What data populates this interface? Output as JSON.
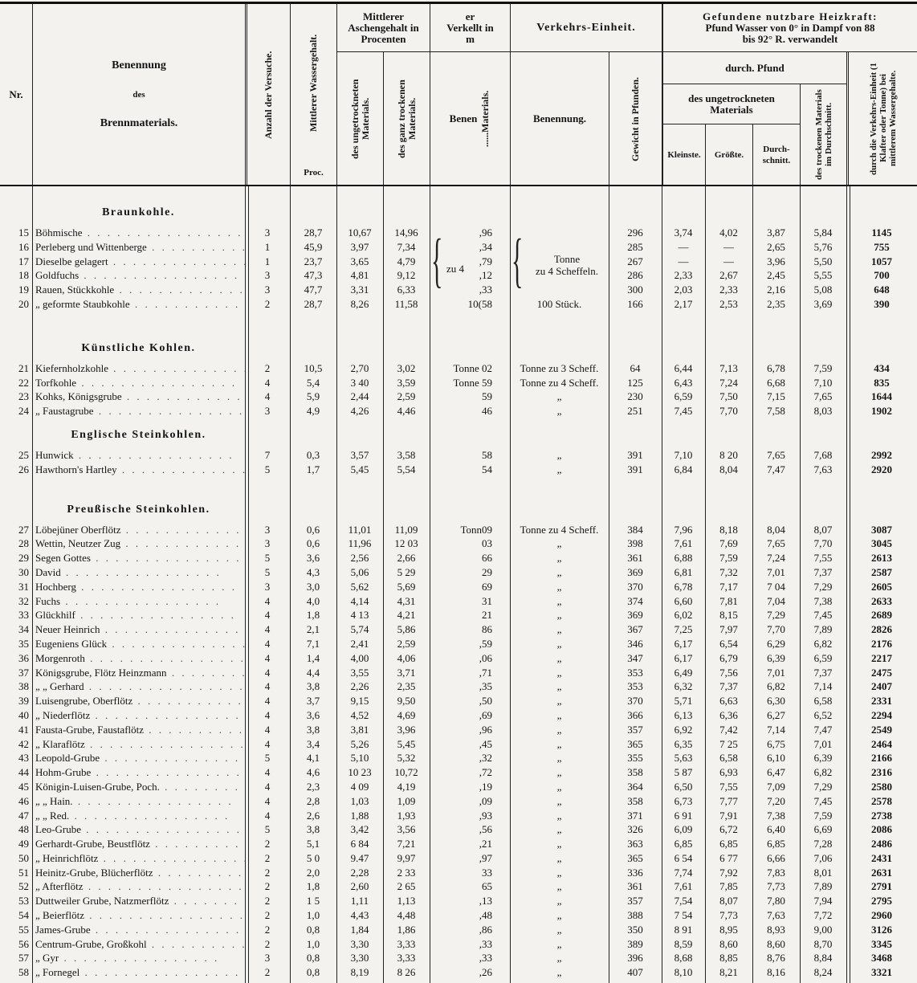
{
  "header": {
    "nr": "Nr.",
    "name": [
      "Benennung",
      "des",
      "Brennmaterials."
    ],
    "anzahl": "Anzahl der Versuche.",
    "wasser": "Mittlerer Wassergehalt.",
    "wasser_unit": "Proc.",
    "asche_group": [
      "Mittlerer",
      "Aschengehalt in",
      "Procenten"
    ],
    "asche_u": "des ungetrockneten Materials.",
    "asche_t": "des ganz trockenen Materials.",
    "verk_group": [
      "er",
      "Verkellt in",
      "m"
    ],
    "verk_benen": "Benen",
    "verk_mat": "......Materials.",
    "einheit_group": "Verkehrs-Einheit.",
    "einheit_benennung": "Benennung.",
    "gewicht": "Gewicht in Pfunden.",
    "heiz_group": [
      "Gefundene nutzbare Heizkraft:",
      "Pfund Wasser von 0° in Dampf von 88",
      "bis 92° R. verwandelt"
    ],
    "durch_pfund": "durch. Pfund",
    "ungetr": [
      "des ungetrockneten",
      "Materials"
    ],
    "kleinste": "Kleinste.",
    "groesste": "Größte.",
    "durchschnitt": [
      "Durch-",
      "schnitt."
    ],
    "trocken": "des trockenen Materials im Durchschnitt.",
    "total": "durch die Verkehrs-Einheit (1 Klafter oder Tonne) bei mittlerem Wassergehalte."
  },
  "sections": [
    {
      "title": "Braunkohle.",
      "group_verk": "zu 4",
      "group_unit": [
        "Tonne",
        "zu 4 Scheffeln."
      ],
      "rows": [
        [
          "15",
          "Böhmische",
          "3",
          "28,7",
          "10,67",
          "14,96",
          ",96",
          "",
          "296",
          "3,74",
          "4,02",
          "3,87",
          "5,84",
          "1145"
        ],
        [
          "16",
          "Perleberg und Wittenberge",
          "1",
          "45,9",
          "3,97",
          "7,34",
          ",34",
          "",
          "285",
          "—",
          "—",
          "2,65",
          "5,76",
          "755"
        ],
        [
          "17",
          "Dieselbe gelagert",
          "1",
          "23,7",
          "3,65",
          "4,79",
          ",79",
          "",
          "267",
          "—",
          "—",
          "3,96",
          "5,50",
          "1057"
        ],
        [
          "18",
          "Goldfuchs",
          "3",
          "47,3",
          "4,81",
          "9,12",
          ",12",
          "",
          "286",
          "2,33",
          "2,67",
          "2,45",
          "5,55",
          "700"
        ],
        [
          "19",
          "Rauen, Stückkohle",
          "3",
          "47,7",
          "3,31",
          "6,33",
          ",33",
          "",
          "300",
          "2,03",
          "2,33",
          "2,16",
          "5,08",
          "648"
        ],
        [
          "20",
          "„ geformte Staubkohle",
          "2",
          "28,7",
          "8,26",
          "11,58",
          "10(58",
          "100 Stück.",
          "166",
          "2,17",
          "2,53",
          "2,35",
          "3,69",
          "390"
        ]
      ]
    },
    {
      "title": "Künstliche Kohlen.",
      "rows": [
        [
          "21",
          "Kiefernholzkohle",
          "2",
          "10,5",
          "2,70",
          "3,02",
          "Tonne 02",
          "Tonne zu 3 Scheff.",
          "64",
          "6,44",
          "7,13",
          "6,78",
          "7,59",
          "434"
        ],
        [
          "22",
          "Torfkohle",
          "4",
          "5,4",
          "3 40",
          "3,59",
          "Tonne 59",
          "Tonne zu 4 Scheff.",
          "125",
          "6,43",
          "7,24",
          "6,68",
          "7,10",
          "835"
        ],
        [
          "23",
          "Kohks, Königsgrube",
          "4",
          "5,9",
          "2,44",
          "2,59",
          "59",
          "„",
          "230",
          "6,59",
          "7,50",
          "7,15",
          "7,65",
          "1644"
        ],
        [
          "24",
          "„ Faustagrube",
          "3",
          "4,9",
          "4,26",
          "4,46",
          "46",
          "„",
          "251",
          "7,45",
          "7,70",
          "7,58",
          "8,03",
          "1902"
        ]
      ]
    },
    {
      "title": "Englische Steinkohlen.",
      "rows": [
        [
          "25",
          "Hunwick",
          "7",
          "0,3",
          "3,57",
          "3,58",
          "58",
          "„",
          "391",
          "7,10",
          "8 20",
          "7,65",
          "7,68",
          "2992"
        ],
        [
          "26",
          "Hawthorn's Hartley",
          "5",
          "1,7",
          "5,45",
          "5,54",
          "54",
          "„",
          "391",
          "6,84",
          "8,04",
          "7,47",
          "7,63",
          "2920"
        ]
      ]
    },
    {
      "title": "Preußische Steinkohlen.",
      "rows": [
        [
          "27",
          "Löbejüner Oberflötz",
          "3",
          "0,6",
          "11,01",
          "11,09",
          "Tonn09",
          "Tonne zu 4 Scheff.",
          "384",
          "7,96",
          "8,18",
          "8,04",
          "8,07",
          "3087"
        ],
        [
          "28",
          "Wettin, Neutzer Zug",
          "3",
          "0,6",
          "11,96",
          "12 03",
          "03",
          "„",
          "398",
          "7,61",
          "7,69",
          "7,65",
          "7,70",
          "3045"
        ],
        [
          "29",
          "Segen Gottes",
          "5",
          "3,6",
          "2,56",
          "2,66",
          "66",
          "„",
          "361",
          "6,88",
          "7,59",
          "7,24",
          "7,55",
          "2613"
        ],
        [
          "30",
          "David",
          "5",
          "4,3",
          "5,06",
          "5 29",
          "29",
          "„",
          "369",
          "6,81",
          "7,32",
          "7,01",
          "7,37",
          "2587"
        ],
        [
          "31",
          "Hochberg",
          "3",
          "3,0",
          "5,62",
          "5,69",
          "69",
          "„",
          "370",
          "6,78",
          "7,17",
          "7 04",
          "7,29",
          "2605"
        ],
        [
          "32",
          "Fuchs",
          "4",
          "4,0",
          "4,14",
          "4,31",
          "31",
          "„",
          "374",
          "6,60",
          "7,81",
          "7,04",
          "7,38",
          "2633"
        ],
        [
          "33",
          "Glückhilf",
          "4",
          "1,8",
          "4 13",
          "4,21",
          "21",
          "„",
          "369",
          "6,02",
          "8,15",
          "7,29",
          "7,45",
          "2689"
        ],
        [
          "34",
          "Neuer Heinrich",
          "4",
          "2,1",
          "5,74",
          "5,86",
          "86",
          "„",
          "367",
          "7,25",
          "7,97",
          "7,70",
          "7,89",
          "2826"
        ],
        [
          "35",
          "Eugeniens Glück",
          "4",
          "7,1",
          "2,41",
          "2,59",
          ",59",
          "„",
          "346",
          "6,17",
          "6,54",
          "6,29",
          "6,82",
          "2176"
        ],
        [
          "36",
          "Morgenroth",
          "4",
          "1,4",
          "4,00",
          "4,06",
          ",06",
          "„",
          "347",
          "6,17",
          "6,79",
          "6,39",
          "6,59",
          "2217"
        ],
        [
          "37",
          "Königsgrube, Flötz Heinzmann",
          "4",
          "4,4",
          "3,55",
          "3,71",
          ",71",
          "„",
          "353",
          "6,49",
          "7,56",
          "7,01",
          "7,37",
          "2475"
        ],
        [
          "38",
          "„ „ Gerhard",
          "4",
          "3,8",
          "2,26",
          "2,35",
          ",35",
          "„",
          "353",
          "6,32",
          "7,37",
          "6,82",
          "7,14",
          "2407"
        ],
        [
          "39",
          "Luisengrube, Oberflötz",
          "4",
          "3,7",
          "9,15",
          "9,50",
          ",50",
          "„",
          "370",
          "5,71",
          "6,63",
          "6,30",
          "6,58",
          "2331"
        ],
        [
          "40",
          "„ Niederflötz",
          "4",
          "3,6",
          "4,52",
          "4,69",
          ",69",
          "„",
          "366",
          "6,13",
          "6,36",
          "6,27",
          "6,52",
          "2294"
        ],
        [
          "41",
          "Fausta-Grube, Faustaflötz",
          "4",
          "3,8",
          "3,81",
          "3,96",
          ",96",
          "„",
          "357",
          "6,92",
          "7,42",
          "7,14",
          "7,47",
          "2549"
        ],
        [
          "42",
          "„ Klaraflötz",
          "4",
          "3,4",
          "5,26",
          "5,45",
          ",45",
          "„",
          "365",
          "6,35",
          "7 25",
          "6,75",
          "7,01",
          "2464"
        ],
        [
          "43",
          "Leopold-Grube",
          "5",
          "4,1",
          "5,10",
          "5,32",
          ",32",
          "„",
          "355",
          "5,63",
          "6,58",
          "6,10",
          "6,39",
          "2166"
        ],
        [
          "44",
          "Hohm-Grube",
          "4",
          "4,6",
          "10 23",
          "10,72",
          ",72",
          "„",
          "358",
          "5 87",
          "6,93",
          "6,47",
          "6,82",
          "2316"
        ],
        [
          "45",
          "Königin-Luisen-Grube, Poch.",
          "4",
          "2,3",
          "4 09",
          "4,19",
          ",19",
          "„",
          "364",
          "6,50",
          "7,55",
          "7,09",
          "7,29",
          "2580"
        ],
        [
          "46",
          "„ „ Hain.",
          "4",
          "2,8",
          "1,03",
          "1,09",
          ",09",
          "„",
          "358",
          "6,73",
          "7,77",
          "7,20",
          "7,45",
          "2578"
        ],
        [
          "47",
          "„ „ Red.",
          "4",
          "2,6",
          "1,88",
          "1,93",
          ",93",
          "„",
          "371",
          "6 91",
          "7,91",
          "7,38",
          "7,59",
          "2738"
        ],
        [
          "48",
          "Leo-Grube",
          "5",
          "3,8",
          "3,42",
          "3,56",
          ",56",
          "„",
          "326",
          "6,09",
          "6,72",
          "6,40",
          "6,69",
          "2086"
        ],
        [
          "49",
          "Gerhardt-Grube, Beustflötz",
          "2",
          "5,1",
          "6 84",
          "7,21",
          ",21",
          "„",
          "363",
          "6,85",
          "6,85",
          "6,85",
          "7,28",
          "2486"
        ],
        [
          "50",
          "„ Heinrichflötz",
          "2",
          "5 0",
          "9.47",
          "9,97",
          ",97",
          "„",
          "365",
          "6 54",
          "6 77",
          "6,66",
          "7,06",
          "2431"
        ],
        [
          "51",
          "Heinitz-Grube, Blücherflötz",
          "2",
          "2,0",
          "2,28",
          "2 33",
          "33",
          "„",
          "336",
          "7,74",
          "7,92",
          "7,83",
          "8,01",
          "2631"
        ],
        [
          "52",
          "„ Afterflötz",
          "2",
          "1,8",
          "2,60",
          "2 65",
          "65",
          "„",
          "361",
          "7,61",
          "7,85",
          "7,73",
          "7,89",
          "2791"
        ],
        [
          "53",
          "Duttweiler Grube, Natzmerflötz",
          "2",
          "1 5",
          "1,11",
          "1,13",
          ",13",
          "„",
          "357",
          "7,54",
          "8,07",
          "7,80",
          "7,94",
          "2795"
        ],
        [
          "54",
          "„ Beierflötz",
          "2",
          "1,0",
          "4,43",
          "4,48",
          ",48",
          "„",
          "388",
          "7 54",
          "7,73",
          "7,63",
          "7,72",
          "2960"
        ],
        [
          "55",
          "James-Grube",
          "2",
          "0,8",
          "1,84",
          "1,86",
          ",86",
          "„",
          "350",
          "8 91",
          "8,95",
          "8,93",
          "9,00",
          "3126"
        ],
        [
          "56",
          "Centrum-Grube, Großkohl",
          "2",
          "1,0",
          "3,30",
          "3,33",
          ",33",
          "„",
          "389",
          "8,59",
          "8,60",
          "8,60",
          "8,70",
          "3345"
        ],
        [
          "57",
          "„ Gyr",
          "3",
          "0,8",
          "3,30",
          "3,33",
          ",33",
          "„",
          "396",
          "8,68",
          "8,85",
          "8,76",
          "8,84",
          "3468"
        ],
        [
          "58",
          "„ Fornegel",
          "2",
          "0,8",
          "8,19",
          "8 26",
          ",26",
          "„",
          "407",
          "8,10",
          "8,21",
          "8,16",
          "8,24",
          "3321"
        ]
      ]
    }
  ]
}
